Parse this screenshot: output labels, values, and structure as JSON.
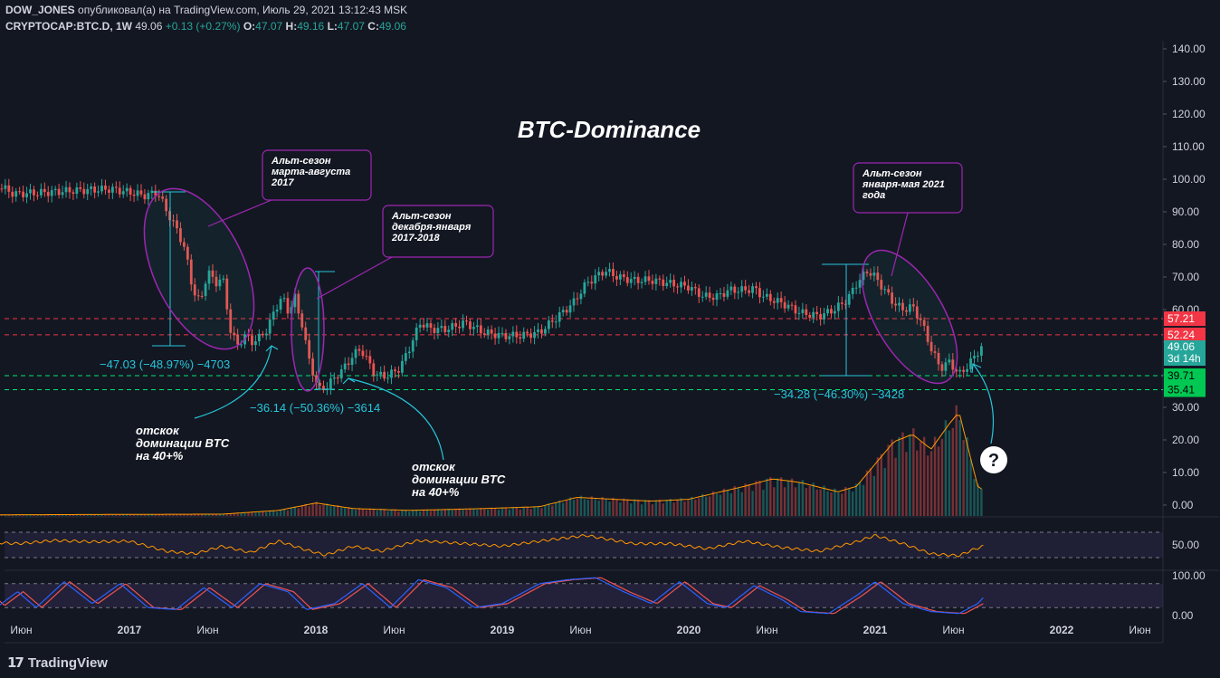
{
  "header": {
    "author": "DOW_JONES",
    "published_text": "опубликовал(а) на TradingView.com, Июль 29, 2021 13:12:43 MSK",
    "symbol": "CRYPTOCAP:BTC.D, 1W",
    "last": "49.06",
    "change": "+0.13 (+0.27%)",
    "o_label": "O:",
    "o_value": "47.07",
    "h_label": "H:",
    "h_value": "49.16",
    "l_label": "L:",
    "l_value": "47.07",
    "c_label": "C:",
    "c_value": "49.06"
  },
  "footer": {
    "brand": "TradingView"
  },
  "colors": {
    "background": "#131722",
    "up": "#26a69a",
    "down": "#ef5350",
    "ellipse": "#9c27b0",
    "measure": "#26c6da",
    "red_line": "#f23645",
    "green_line": "#00e676",
    "rsi_line": "#ff9800",
    "stoch_k": "#2962ff",
    "stoch_d": "#ef5350"
  },
  "chart_data": {
    "type": "candlestick",
    "title": "BTC-Dominance",
    "price_axis_ticks": [
      "140.00",
      "130.00",
      "120.00",
      "110.00",
      "100.00",
      "90.00",
      "80.00",
      "70.00",
      "60.00",
      "50.00",
      "40.00",
      "30.00",
      "20.00",
      "10.00",
      "0.00"
    ],
    "time_axis_ticks": [
      "Июн",
      "2017",
      "Июн",
      "2018",
      "Июн",
      "2019",
      "Июн",
      "2020",
      "Июн",
      "2021",
      "Июн",
      "2022",
      "Июн"
    ],
    "price_path": [
      [
        2016.2,
        98.5
      ],
      [
        2016.3,
        98.0
      ],
      [
        2016.38,
        95.5
      ],
      [
        2016.5,
        95.8
      ],
      [
        2016.7,
        96.5
      ],
      [
        2016.9,
        97.0
      ],
      [
        2017.0,
        96.0
      ],
      [
        2017.08,
        95.0
      ],
      [
        2017.15,
        96.0
      ],
      [
        2017.22,
        88.0
      ],
      [
        2017.26,
        84.0
      ],
      [
        2017.3,
        78.0
      ],
      [
        2017.34,
        66.0
      ],
      [
        2017.38,
        62.0
      ],
      [
        2017.42,
        72.0
      ],
      [
        2017.46,
        68.0
      ],
      [
        2017.5,
        70.0
      ],
      [
        2017.54,
        54.0
      ],
      [
        2017.58,
        49.0
      ],
      [
        2017.62,
        52.0
      ],
      [
        2017.66,
        50.0
      ],
      [
        2017.7,
        51.5
      ],
      [
        2017.74,
        54.0
      ],
      [
        2017.78,
        60.0
      ],
      [
        2017.82,
        64.0
      ],
      [
        2017.86,
        58.0
      ],
      [
        2017.88,
        66.0
      ],
      [
        2017.9,
        60.0
      ],
      [
        2017.93,
        55.0
      ],
      [
        2017.96,
        45.0
      ],
      [
        2018.0,
        38.0
      ],
      [
        2018.02,
        35.4
      ],
      [
        2018.05,
        36.0
      ],
      [
        2018.1,
        39.0
      ],
      [
        2018.15,
        42.0
      ],
      [
        2018.2,
        46.0
      ],
      [
        2018.24,
        48.0
      ],
      [
        2018.28,
        44.0
      ],
      [
        2018.32,
        40.0
      ],
      [
        2018.38,
        39.5
      ],
      [
        2018.45,
        42.0
      ],
      [
        2018.5,
        48.0
      ],
      [
        2018.56,
        56.0
      ],
      [
        2018.62,
        54.0
      ],
      [
        2018.7,
        54.0
      ],
      [
        2018.8,
        56.0
      ],
      [
        2018.9,
        53.0
      ],
      [
        2019.0,
        52.0
      ],
      [
        2019.1,
        52.0
      ],
      [
        2019.2,
        53.0
      ],
      [
        2019.3,
        58.0
      ],
      [
        2019.38,
        62.0
      ],
      [
        2019.45,
        68.0
      ],
      [
        2019.55,
        72.0
      ],
      [
        2019.62,
        70.0
      ],
      [
        2019.7,
        69.0
      ],
      [
        2019.8,
        69.0
      ],
      [
        2019.9,
        68.0
      ],
      [
        2020.0,
        67.0
      ],
      [
        2020.08,
        64.0
      ],
      [
        2020.15,
        64.0
      ],
      [
        2020.22,
        66.0
      ],
      [
        2020.3,
        66.0
      ],
      [
        2020.35,
        66.5
      ],
      [
        2020.4,
        64.0
      ],
      [
        2020.5,
        62.0
      ],
      [
        2020.6,
        59.0
      ],
      [
        2020.7,
        58.0
      ],
      [
        2020.78,
        60.0
      ],
      [
        2020.85,
        63.0
      ],
      [
        2020.9,
        68.0
      ],
      [
        2020.96,
        72.0
      ],
      [
        2021.0,
        70.0
      ],
      [
        2021.05,
        66.0
      ],
      [
        2021.1,
        62.0
      ],
      [
        2021.15,
        60.0
      ],
      [
        2021.2,
        61.0
      ],
      [
        2021.25,
        56.0
      ],
      [
        2021.3,
        48.0
      ],
      [
        2021.35,
        42.0
      ],
      [
        2021.4,
        44.0
      ],
      [
        2021.45,
        40.0
      ],
      [
        2021.5,
        43.0
      ],
      [
        2021.55,
        47.0
      ],
      [
        2021.58,
        49.06
      ]
    ],
    "volume_path": [
      [
        2016.2,
        0.3
      ],
      [
        2017.5,
        0.5
      ],
      [
        2017.8,
        1.5
      ],
      [
        2018.0,
        3.5
      ],
      [
        2018.2,
        2.0
      ],
      [
        2018.5,
        1.5
      ],
      [
        2018.9,
        2.0
      ],
      [
        2019.2,
        2.5
      ],
      [
        2019.4,
        5.0
      ],
      [
        2019.6,
        4.5
      ],
      [
        2019.8,
        4.0
      ],
      [
        2020.0,
        4.5
      ],
      [
        2020.3,
        8.0
      ],
      [
        2020.45,
        10.0
      ],
      [
        2020.6,
        9.0
      ],
      [
        2020.8,
        6.5
      ],
      [
        2020.9,
        8.0
      ],
      [
        2021.0,
        14.0
      ],
      [
        2021.1,
        20.0
      ],
      [
        2021.2,
        22.0
      ],
      [
        2021.3,
        18.0
      ],
      [
        2021.4,
        25.0
      ],
      [
        2021.45,
        28.0
      ],
      [
        2021.5,
        18.0
      ],
      [
        2021.55,
        8.0
      ],
      [
        2021.58,
        7.0
      ]
    ],
    "rsi_path": [
      [
        2016.2,
        55
      ],
      [
        2016.4,
        52
      ],
      [
        2016.6,
        57
      ],
      [
        2016.8,
        55
      ],
      [
        2017.0,
        56
      ],
      [
        2017.2,
        40
      ],
      [
        2017.35,
        36
      ],
      [
        2017.5,
        48
      ],
      [
        2017.65,
        38
      ],
      [
        2017.8,
        56
      ],
      [
        2017.95,
        42
      ],
      [
        2018.05,
        34
      ],
      [
        2018.2,
        48
      ],
      [
        2018.35,
        40
      ],
      [
        2018.55,
        57
      ],
      [
        2018.8,
        52
      ],
      [
        2019.0,
        48
      ],
      [
        2019.2,
        56
      ],
      [
        2019.45,
        65
      ],
      [
        2019.7,
        52
      ],
      [
        2019.9,
        52
      ],
      [
        2020.1,
        44
      ],
      [
        2020.3,
        56
      ],
      [
        2020.5,
        46
      ],
      [
        2020.7,
        40
      ],
      [
        2020.9,
        55
      ],
      [
        2021.0,
        65
      ],
      [
        2021.15,
        52
      ],
      [
        2021.3,
        36
      ],
      [
        2021.45,
        33
      ],
      [
        2021.52,
        42
      ],
      [
        2021.58,
        48
      ]
    ],
    "rsi_axis_ticks": [
      "50.00"
    ],
    "stoch_path": [
      [
        2016.2,
        70
      ],
      [
        2016.3,
        25
      ],
      [
        2016.4,
        60
      ],
      [
        2016.5,
        20
      ],
      [
        2016.65,
        85
      ],
      [
        2016.8,
        30
      ],
      [
        2016.95,
        80
      ],
      [
        2017.1,
        20
      ],
      [
        2017.25,
        15
      ],
      [
        2017.4,
        70
      ],
      [
        2017.55,
        20
      ],
      [
        2017.7,
        80
      ],
      [
        2017.85,
        60
      ],
      [
        2017.95,
        15
      ],
      [
        2018.1,
        30
      ],
      [
        2018.25,
        80
      ],
      [
        2018.4,
        20
      ],
      [
        2018.55,
        90
      ],
      [
        2018.7,
        70
      ],
      [
        2018.85,
        20
      ],
      [
        2019.0,
        30
      ],
      [
        2019.2,
        80
      ],
      [
        2019.35,
        90
      ],
      [
        2019.5,
        95
      ],
      [
        2019.65,
        60
      ],
      [
        2019.8,
        30
      ],
      [
        2019.95,
        85
      ],
      [
        2020.1,
        30
      ],
      [
        2020.2,
        20
      ],
      [
        2020.35,
        75
      ],
      [
        2020.5,
        40
      ],
      [
        2020.6,
        10
      ],
      [
        2020.75,
        5
      ],
      [
        2020.9,
        50
      ],
      [
        2021.0,
        85
      ],
      [
        2021.15,
        30
      ],
      [
        2021.3,
        10
      ],
      [
        2021.45,
        5
      ],
      [
        2021.55,
        30
      ],
      [
        2021.58,
        45
      ]
    ],
    "stoch_axis_ticks": [
      "100.00",
      "0.00"
    ],
    "levels": [
      {
        "label": "57.21",
        "value": 57.21,
        "color": "#f23645"
      },
      {
        "label": "52.24",
        "value": 52.24,
        "color": "#f23645"
      },
      {
        "label": "39.71",
        "value": 39.71,
        "color": "#00e676"
      },
      {
        "label": "35.41",
        "value": 35.41,
        "color": "#00e676"
      }
    ],
    "last_price_badge": {
      "label": "49.06",
      "sublabel": "3d 14h"
    },
    "measurements": [
      {
        "label": "−47.03 (−48.97%) −4703"
      },
      {
        "label": "−36.14 (−50.36%) −3614"
      },
      {
        "label": "−34.28 (−46.30%) −3428"
      }
    ],
    "callouts": [
      {
        "lines": [
          "Альт-сезон",
          "марта-августа",
          "2017"
        ]
      },
      {
        "lines": [
          "Альт-сезон",
          "декабря-января",
          "2017-2018"
        ]
      },
      {
        "lines": [
          "Альт-сезон",
          "января-мая 2021",
          "года"
        ]
      }
    ],
    "annotations": [
      {
        "lines": [
          "отскок",
          "доминации BTC",
          "на 40+%"
        ]
      },
      {
        "lines": [
          "отскок",
          "доминации BTC",
          "на 40+%"
        ]
      }
    ],
    "question_mark": "?"
  }
}
